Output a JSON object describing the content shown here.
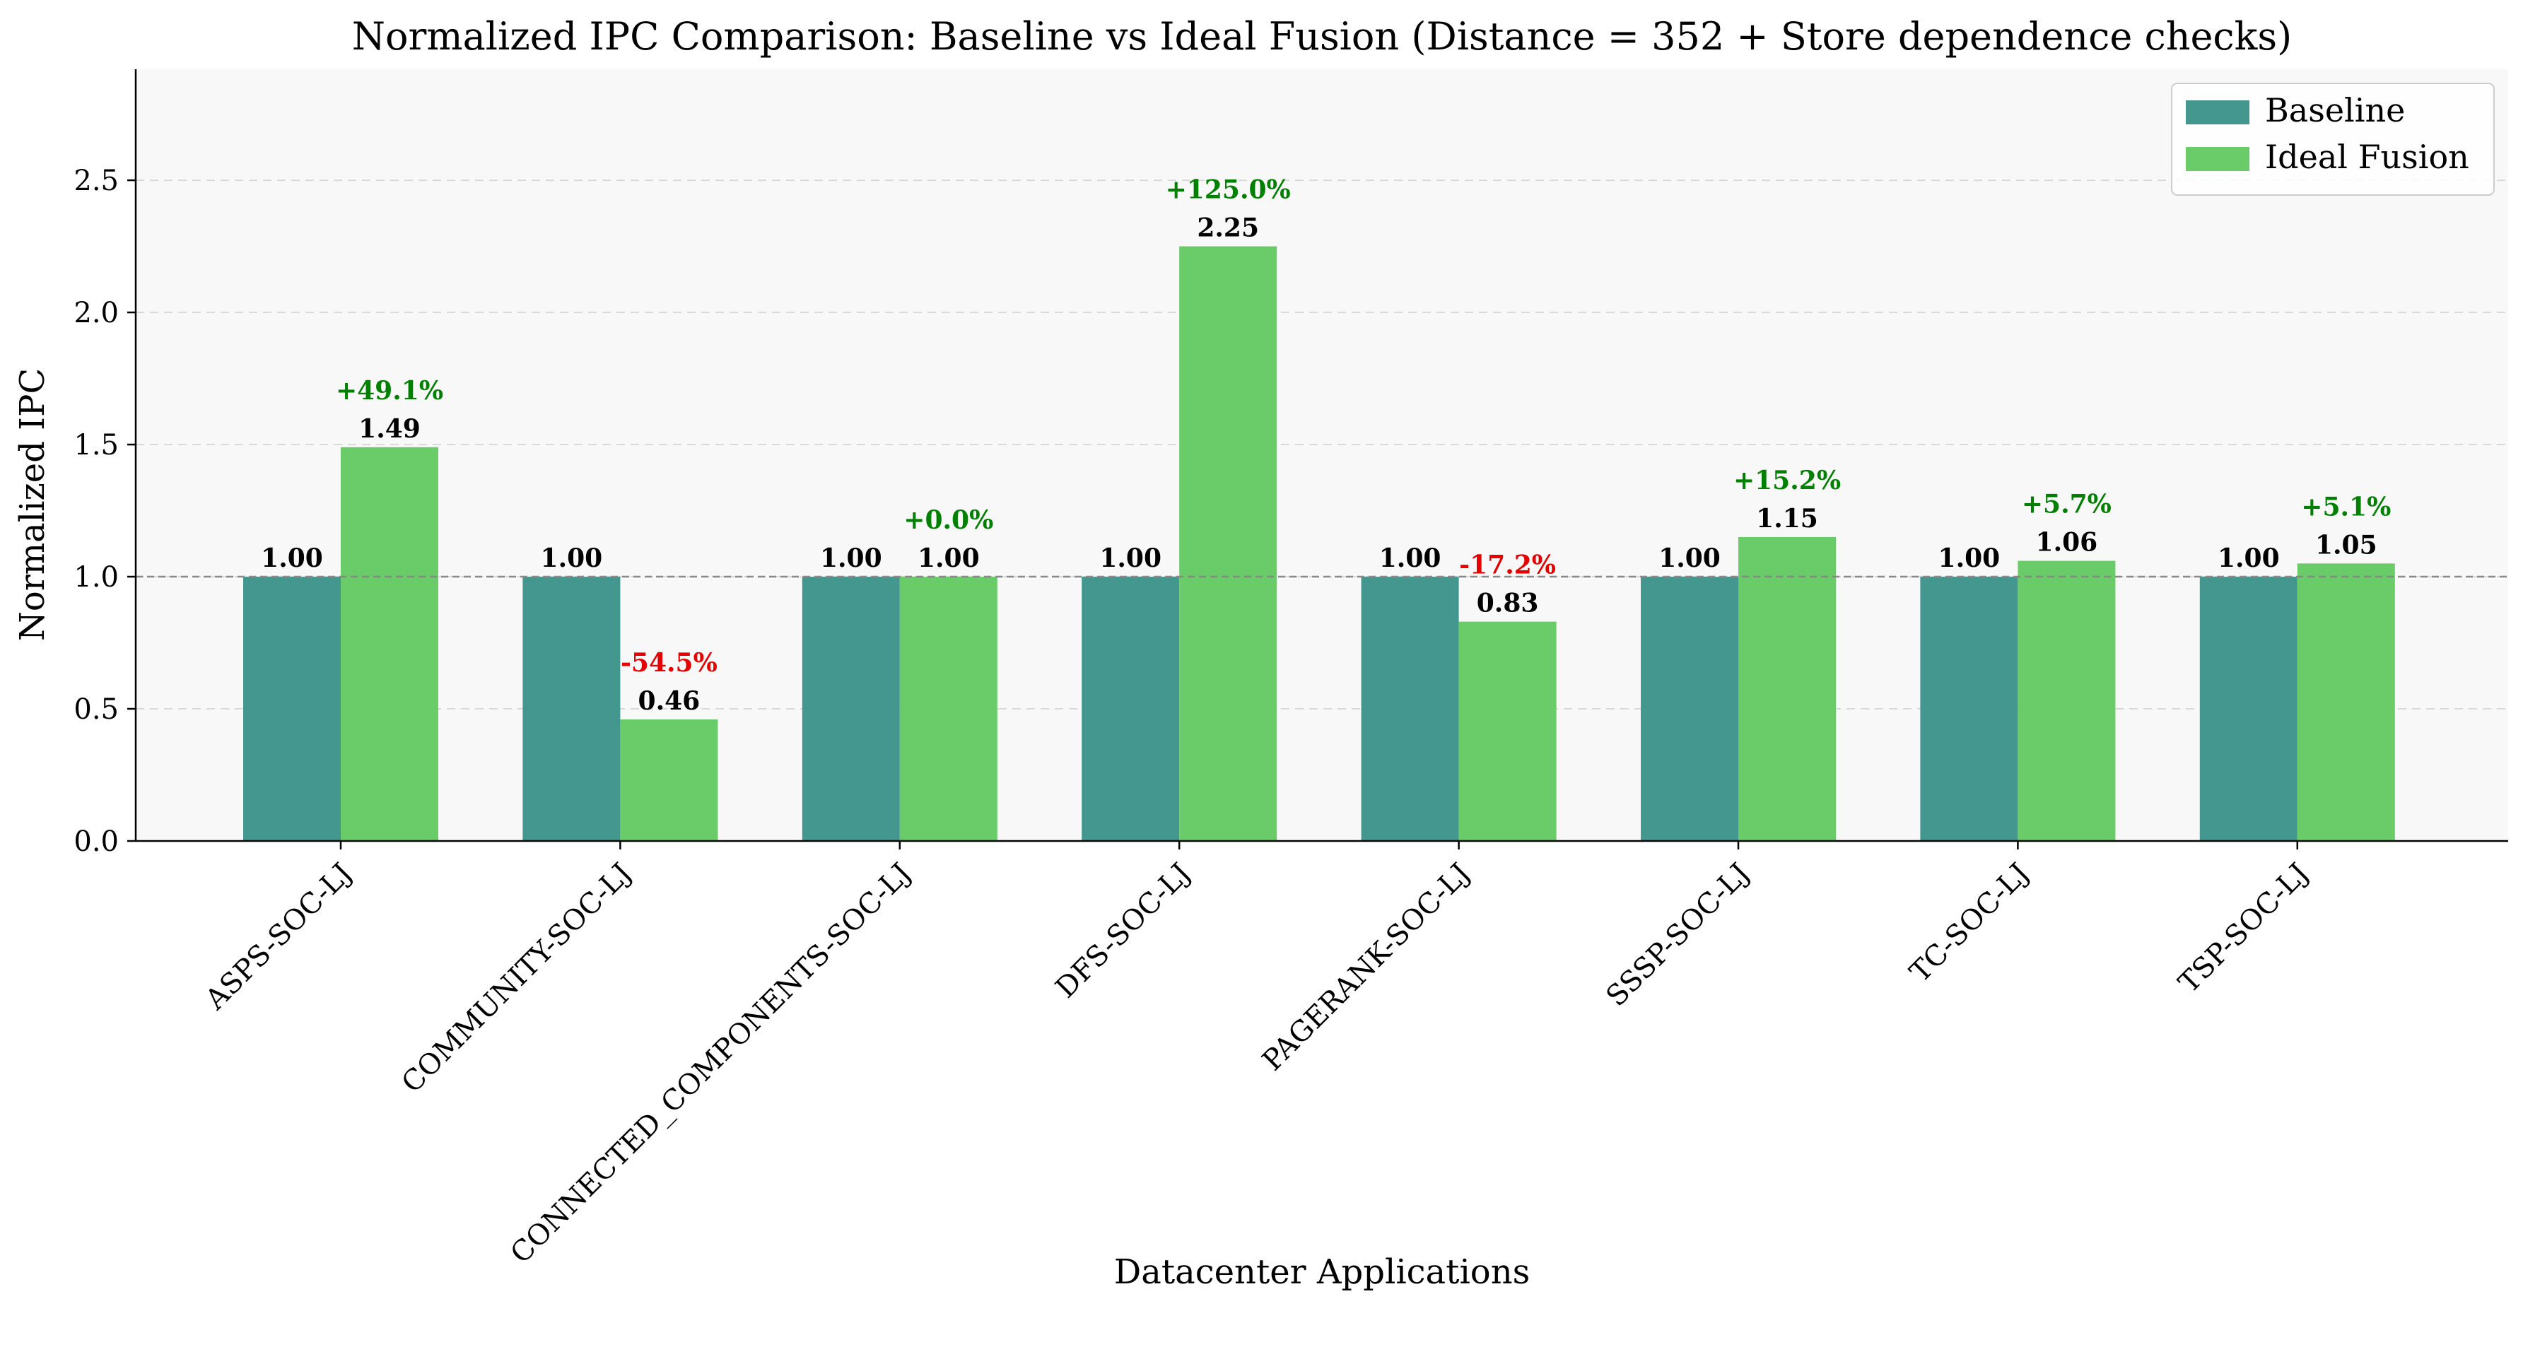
{
  "chart_data": {
    "type": "bar",
    "title": "Normalized IPC Comparison: Baseline vs Ideal Fusion (Distance = 352 + Store dependence checks)",
    "xlabel": "Datacenter Applications",
    "ylabel": "Normalized IPC",
    "ylim": [
      0,
      2.92
    ],
    "yticks": [
      "0.0",
      "0.5",
      "1.0",
      "1.5",
      "2.0",
      "2.5"
    ],
    "categories": [
      "ASPS-SOC-LJ",
      "COMMUNITY-SOC-LJ",
      "CONNECTED_COMPONENTS-SOC-LJ",
      "DFS-SOC-LJ",
      "PAGERANK-SOC-LJ",
      "SSSP-SOC-LJ",
      "TC-SOC-LJ",
      "TSP-SOC-LJ"
    ],
    "series": [
      {
        "name": "Baseline",
        "color": "#43978f",
        "values": [
          1.0,
          1.0,
          1.0,
          1.0,
          1.0,
          1.0,
          1.0,
          1.0
        ],
        "value_labels": [
          "1.00",
          "1.00",
          "1.00",
          "1.00",
          "1.00",
          "1.00",
          "1.00",
          "1.00"
        ]
      },
      {
        "name": "Ideal Fusion",
        "color": "#69cc69",
        "values": [
          1.49,
          0.46,
          1.0,
          2.25,
          0.83,
          1.15,
          1.06,
          1.05
        ],
        "value_labels": [
          "1.49",
          "0.46",
          "1.00",
          "2.25",
          "0.83",
          "1.15",
          "1.06",
          "1.05"
        ]
      }
    ],
    "change_labels": [
      "+49.1%",
      "-54.5%",
      "+0.0%",
      "+125.0%",
      "-17.2%",
      "+15.2%",
      "+5.7%",
      "+5.1%"
    ],
    "change_colors": [
      "#008000",
      "#e60000",
      "#008000",
      "#008000",
      "#e60000",
      "#008000",
      "#008000",
      "#008000"
    ],
    "reference_line": 1.0,
    "grid": "y-dashed",
    "legend_position": "top-right",
    "plot_background": "#f8f8f8"
  }
}
